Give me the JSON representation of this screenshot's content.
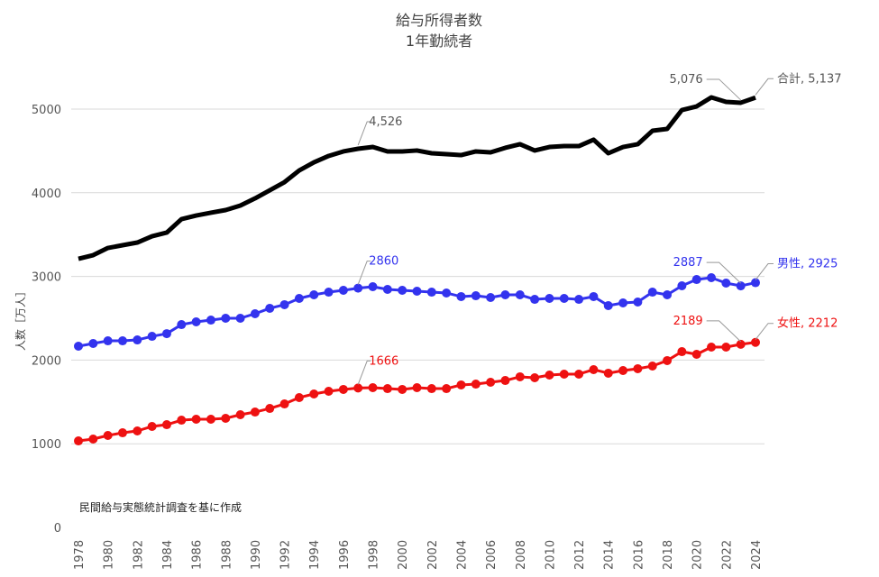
{
  "chart_data": {
    "type": "line",
    "title": "給与所得者数",
    "subtitle": "1年勤続者",
    "ylabel": "人数［万人］",
    "xlabel": "",
    "note": "民間給与実態統計調査を基に作成",
    "ylim": [
      0,
      5500
    ],
    "yticks": [
      0,
      1000,
      2000,
      3000,
      4000,
      5000
    ],
    "xticks": [
      1978,
      1980,
      1982,
      1984,
      1986,
      1988,
      1990,
      1992,
      1994,
      1996,
      1998,
      2000,
      2002,
      2004,
      2006,
      2008,
      2010,
      2012,
      2014,
      2016,
      2018,
      2020,
      2022,
      2024
    ],
    "grid": true,
    "x": [
      1978,
      1979,
      1980,
      1981,
      1982,
      1983,
      1984,
      1985,
      1986,
      1987,
      1988,
      1989,
      1990,
      1991,
      1992,
      1993,
      1994,
      1995,
      1996,
      1997,
      1998,
      1999,
      2000,
      2001,
      2002,
      2003,
      2004,
      2005,
      2006,
      2007,
      2008,
      2009,
      2010,
      2011,
      2012,
      2013,
      2014,
      2015,
      2016,
      2017,
      2018,
      2019,
      2020,
      2021,
      2022,
      2023,
      2024
    ],
    "series": [
      {
        "name": "合計",
        "color": "#000000",
        "markers": false,
        "values": [
          3211,
          3254,
          3340,
          3373,
          3405,
          3480,
          3524,
          3685,
          3728,
          3761,
          3793,
          3847,
          3933,
          4030,
          4127,
          4267,
          4364,
          4440,
          4494,
          4526,
          4547,
          4494,
          4494,
          4505,
          4472,
          4461,
          4450,
          4494,
          4483,
          4537,
          4580,
          4505,
          4547,
          4558,
          4558,
          4634,
          4472,
          4547,
          4580,
          4741,
          4763,
          4989,
          5032,
          5140,
          5086,
          5076,
          5137
        ],
        "annotations": [
          {
            "year": 1997,
            "text": "4,526"
          },
          {
            "year": 2023,
            "text": "5,076"
          },
          {
            "year": 2024,
            "text": "合計, 5,137"
          }
        ]
      },
      {
        "name": "男性",
        "color": "#3333ee",
        "markers": true,
        "values": [
          2166,
          2198,
          2230,
          2230,
          2241,
          2284,
          2316,
          2424,
          2457,
          2478,
          2500,
          2500,
          2554,
          2619,
          2662,
          2737,
          2780,
          2812,
          2834,
          2860,
          2877,
          2845,
          2834,
          2823,
          2812,
          2802,
          2759,
          2769,
          2748,
          2780,
          2780,
          2726,
          2737,
          2737,
          2726,
          2759,
          2651,
          2683,
          2694,
          2812,
          2780,
          2888,
          2963,
          2985,
          2920,
          2887,
          2925
        ],
        "annotations": [
          {
            "year": 1997,
            "text": "2860"
          },
          {
            "year": 2023,
            "text": "2887"
          },
          {
            "year": 2024,
            "text": "男性, 2925"
          }
        ]
      },
      {
        "name": "女性",
        "color": "#ee1111",
        "markers": true,
        "values": [
          1034,
          1056,
          1099,
          1131,
          1153,
          1207,
          1228,
          1282,
          1293,
          1293,
          1304,
          1347,
          1379,
          1422,
          1476,
          1552,
          1595,
          1627,
          1649,
          1666,
          1670,
          1659,
          1649,
          1670,
          1659,
          1659,
          1703,
          1713,
          1735,
          1756,
          1800,
          1789,
          1821,
          1832,
          1832,
          1886,
          1843,
          1875,
          1897,
          1929,
          1994,
          2101,
          2069,
          2155,
          2155,
          2189,
          2212
        ],
        "annotations": [
          {
            "year": 1997,
            "text": "1666"
          },
          {
            "year": 2023,
            "text": "2189"
          },
          {
            "year": 2024,
            "text": "女性, 2212"
          }
        ]
      }
    ]
  }
}
